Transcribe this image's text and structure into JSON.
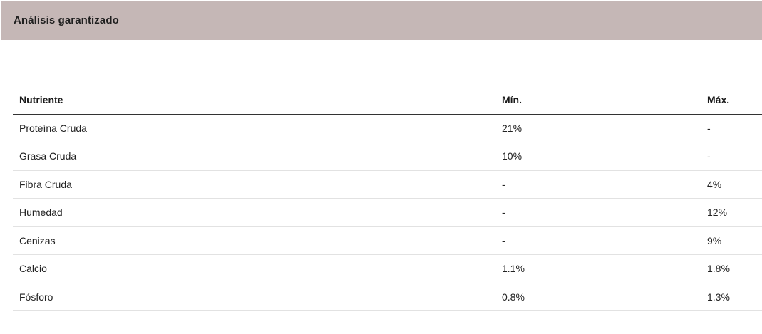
{
  "section": {
    "title": "Análisis garantizado"
  },
  "table": {
    "headers": {
      "nutrient": "Nutriente",
      "min": "Mín.",
      "max": "Máx."
    },
    "rows": [
      {
        "nutrient": "Proteína Cruda",
        "min": "21%",
        "max": "-"
      },
      {
        "nutrient": "Grasa Cruda",
        "min": "10%",
        "max": "-"
      },
      {
        "nutrient": "Fibra Cruda",
        "min": "-",
        "max": "4%"
      },
      {
        "nutrient": "Humedad",
        "min": "-",
        "max": "12%"
      },
      {
        "nutrient": "Cenizas",
        "min": "-",
        "max": "9%"
      },
      {
        "nutrient": "Calcio",
        "min": "1.1%",
        "max": "1.8%"
      },
      {
        "nutrient": "Fósforo",
        "min": "0.8%",
        "max": "1.3%"
      }
    ]
  },
  "colors": {
    "header_background": "#c5b7b6",
    "header_rule": "#333333",
    "row_rule": "#e2e2e2"
  }
}
